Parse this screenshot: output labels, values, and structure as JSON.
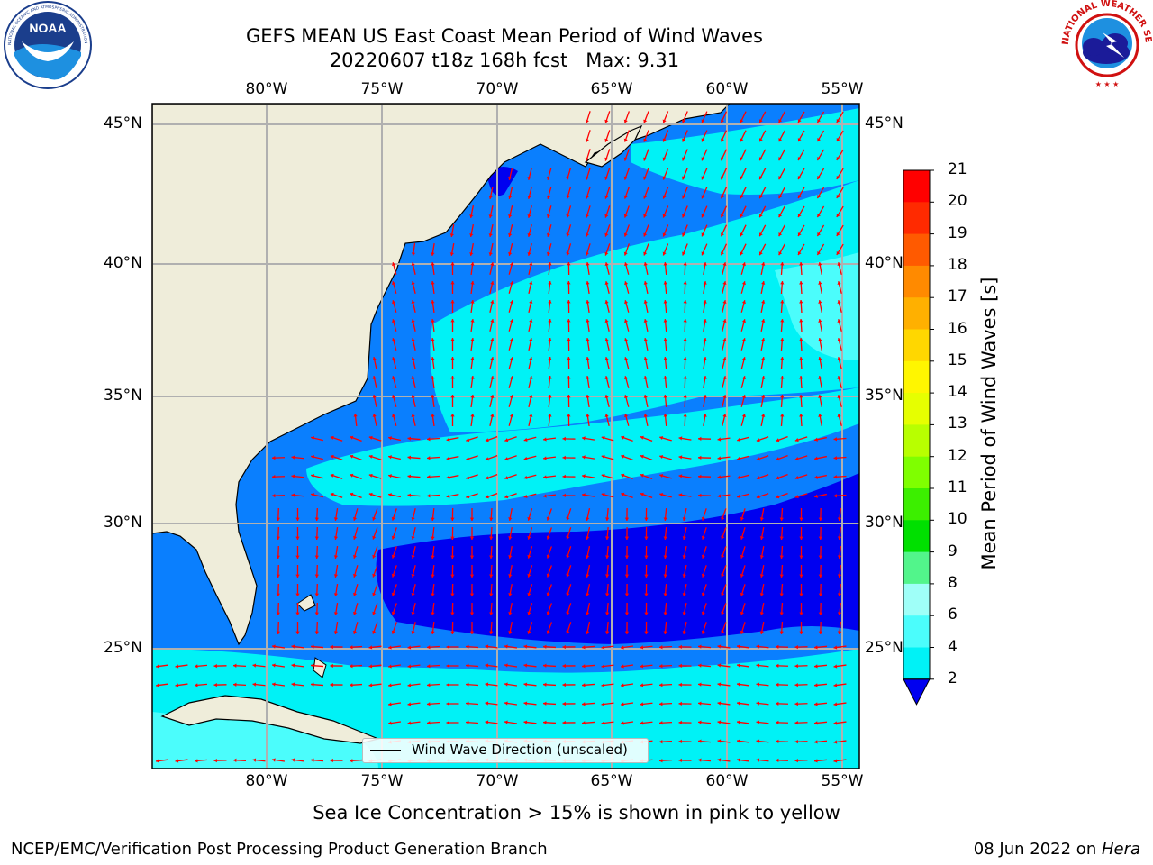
{
  "title": {
    "line1": "GEFS MEAN US East Coast Mean Period of Wind Waves",
    "line2": "20220607 t18z 168h fcst   Max: 9.31"
  },
  "map": {
    "lon_ticks": [
      "80°W",
      "75°W",
      "70°W",
      "65°W",
      "60°W",
      "55°W"
    ],
    "lat_ticks": [
      "45°N",
      "40°N",
      "35°N",
      "30°N",
      "25°N"
    ],
    "legend_label": "Wind Wave Direction (unscaled)",
    "colors": {
      "land": "#efedda",
      "ocean_2_4": "#0a7ffe",
      "ocean_lt_2": "#0000f0",
      "ocean_4_6": "#00f2f6",
      "ocean_6_8": "#4bfdfc",
      "arrow": "#ff0000",
      "grid": "#b0b0b0"
    }
  },
  "colorbar": {
    "title": "Mean Period of Wind Waves [s]",
    "ticks": [
      "21",
      "20",
      "19",
      "18",
      "17",
      "16",
      "15",
      "14",
      "13",
      "12",
      "11",
      "10",
      "9",
      "8",
      "6",
      "4",
      "2"
    ],
    "colors": [
      "#ff0000",
      "#ff2a00",
      "#ff5a00",
      "#ff8a00",
      "#ffb000",
      "#ffd700",
      "#fff600",
      "#e6ff00",
      "#b8ff00",
      "#7fff00",
      "#3cef00",
      "#00e000",
      "#52f58b",
      "#9ffff8",
      "#4bfdfc",
      "#00f2f6",
      "#0a7ffe"
    ],
    "extend_color": "#0000f0"
  },
  "subtitle": "Sea Ice Concentration > 15% is shown in pink to yellow",
  "footer": {
    "left": "NCEP/EMC/Verification Post Processing Product Generation Branch",
    "right_date": "08 Jun 2022 on ",
    "right_host": "Hera"
  },
  "logos": {
    "noaa_text": "NOAA",
    "noaa_ring_text": "NATIONAL OCEANIC AND ATMOSPHERIC ADMINISTRATION",
    "nws_ring_text": "NATIONAL WEATHER SERVICE"
  }
}
